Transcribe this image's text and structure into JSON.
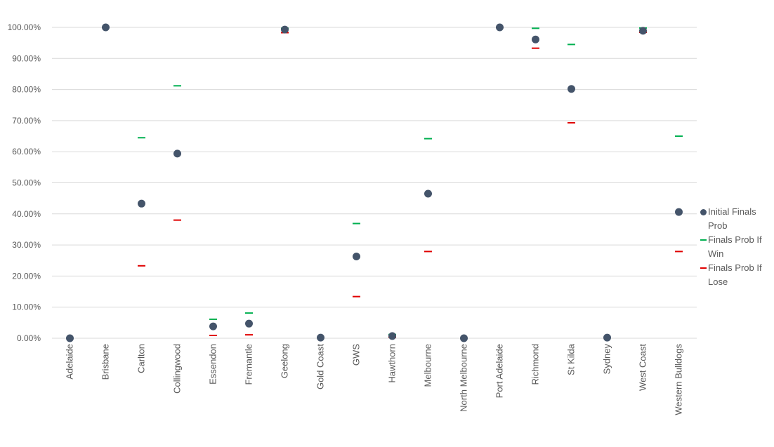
{
  "chart_data": {
    "type": "scatter",
    "categories": [
      "Adelaide",
      "Brisbane",
      "Carlton",
      "Collingwood",
      "Essendon",
      "Fremantle",
      "Geelong",
      "Gold Coast",
      "GWS",
      "Hawthorn",
      "Melbourne",
      "North Melbourne",
      "Port Adelaide",
      "Richmond",
      "St Kilda",
      "Sydney",
      "West Coast",
      "Western Bulldogs"
    ],
    "ylim": [
      0,
      100
    ],
    "yticks": [
      0,
      10,
      20,
      30,
      40,
      50,
      60,
      70,
      80,
      90,
      100
    ],
    "ytick_labels": [
      "0.00%",
      "10.00%",
      "20.00%",
      "30.00%",
      "40.00%",
      "50.00%",
      "60.00%",
      "70.00%",
      "80.00%",
      "90.00%",
      "100.00%"
    ],
    "grid": true,
    "legend_position": "right",
    "series": [
      {
        "name": "Initial Finals Prob",
        "marker": "circle",
        "color": "#44546a",
        "values": [
          0,
          100,
          43.3,
          59.4,
          3.8,
          4.7,
          99.3,
          0.2,
          26.3,
          0.7,
          46.5,
          0,
          100,
          96.1,
          80.2,
          0.2,
          98.9,
          40.6
        ]
      },
      {
        "name": "Finals Prob If Win",
        "marker": "dash",
        "color": "#00b050",
        "values": [
          null,
          null,
          64.5,
          81.2,
          6.1,
          8.1,
          99.7,
          null,
          36.9,
          1.2,
          64.2,
          null,
          null,
          99.7,
          94.5,
          null,
          99.8,
          65.0
        ]
      },
      {
        "name": "Finals Prob If Lose",
        "marker": "dash",
        "color": "#e00000",
        "values": [
          null,
          null,
          23.3,
          38.0,
          0.9,
          1.1,
          98.3,
          null,
          13.4,
          0.3,
          27.9,
          null,
          100,
          93.3,
          69.3,
          null,
          98.4,
          27.9
        ]
      }
    ]
  }
}
